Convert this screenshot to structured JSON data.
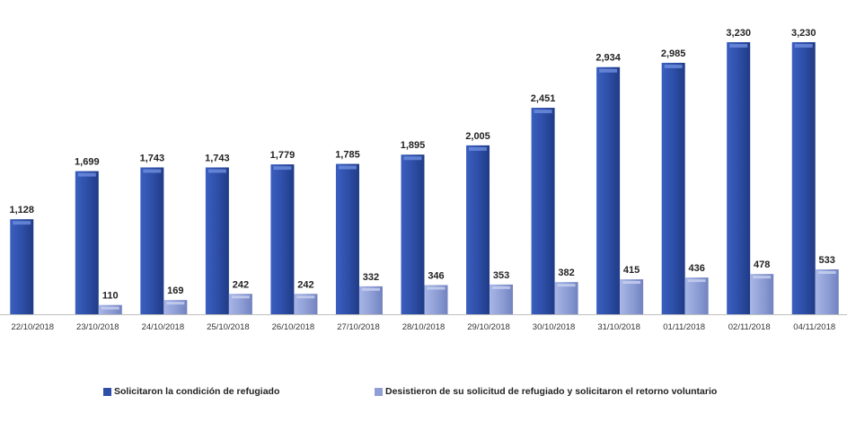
{
  "chart_data": {
    "type": "bar",
    "title": "",
    "xlabel": "",
    "ylabel": "",
    "ylim": [
      0,
      3400
    ],
    "grid": false,
    "legend_position": "bottom",
    "categories": [
      "22/10/2018",
      "23/10/2018",
      "24/10/2018",
      "25/10/2018",
      "26/10/2018",
      "27/10/2018",
      "28/10/2018",
      "29/10/2018",
      "30/10/2018",
      "31/10/2018",
      "01/11/2018",
      "02/11/2018",
      "04/11/2018"
    ],
    "series": [
      {
        "name": "Solicitaron la condición de refugiado",
        "color": "#2e4fa8",
        "values": [
          1128,
          1699,
          1743,
          1743,
          1779,
          1785,
          1895,
          2005,
          2451,
          2934,
          2985,
          3230,
          3230
        ],
        "labels": [
          "1,128",
          "1,699",
          "1,743",
          "1,743",
          "1,779",
          "1,785",
          "1,895",
          "2,005",
          "2,451",
          "2,934",
          "2,985",
          "3,230",
          "3,230"
        ]
      },
      {
        "name": "Desistieron de su solicitud de refugiado y solicitaron el retorno voluntario",
        "color": "#8f9fd6",
        "values": [
          null,
          110,
          169,
          242,
          242,
          332,
          346,
          353,
          382,
          415,
          436,
          478,
          533
        ],
        "labels": [
          "",
          "110",
          "169",
          "242",
          "242",
          "332",
          "346",
          "353",
          "382",
          "415",
          "436",
          "478",
          "533"
        ]
      }
    ]
  }
}
